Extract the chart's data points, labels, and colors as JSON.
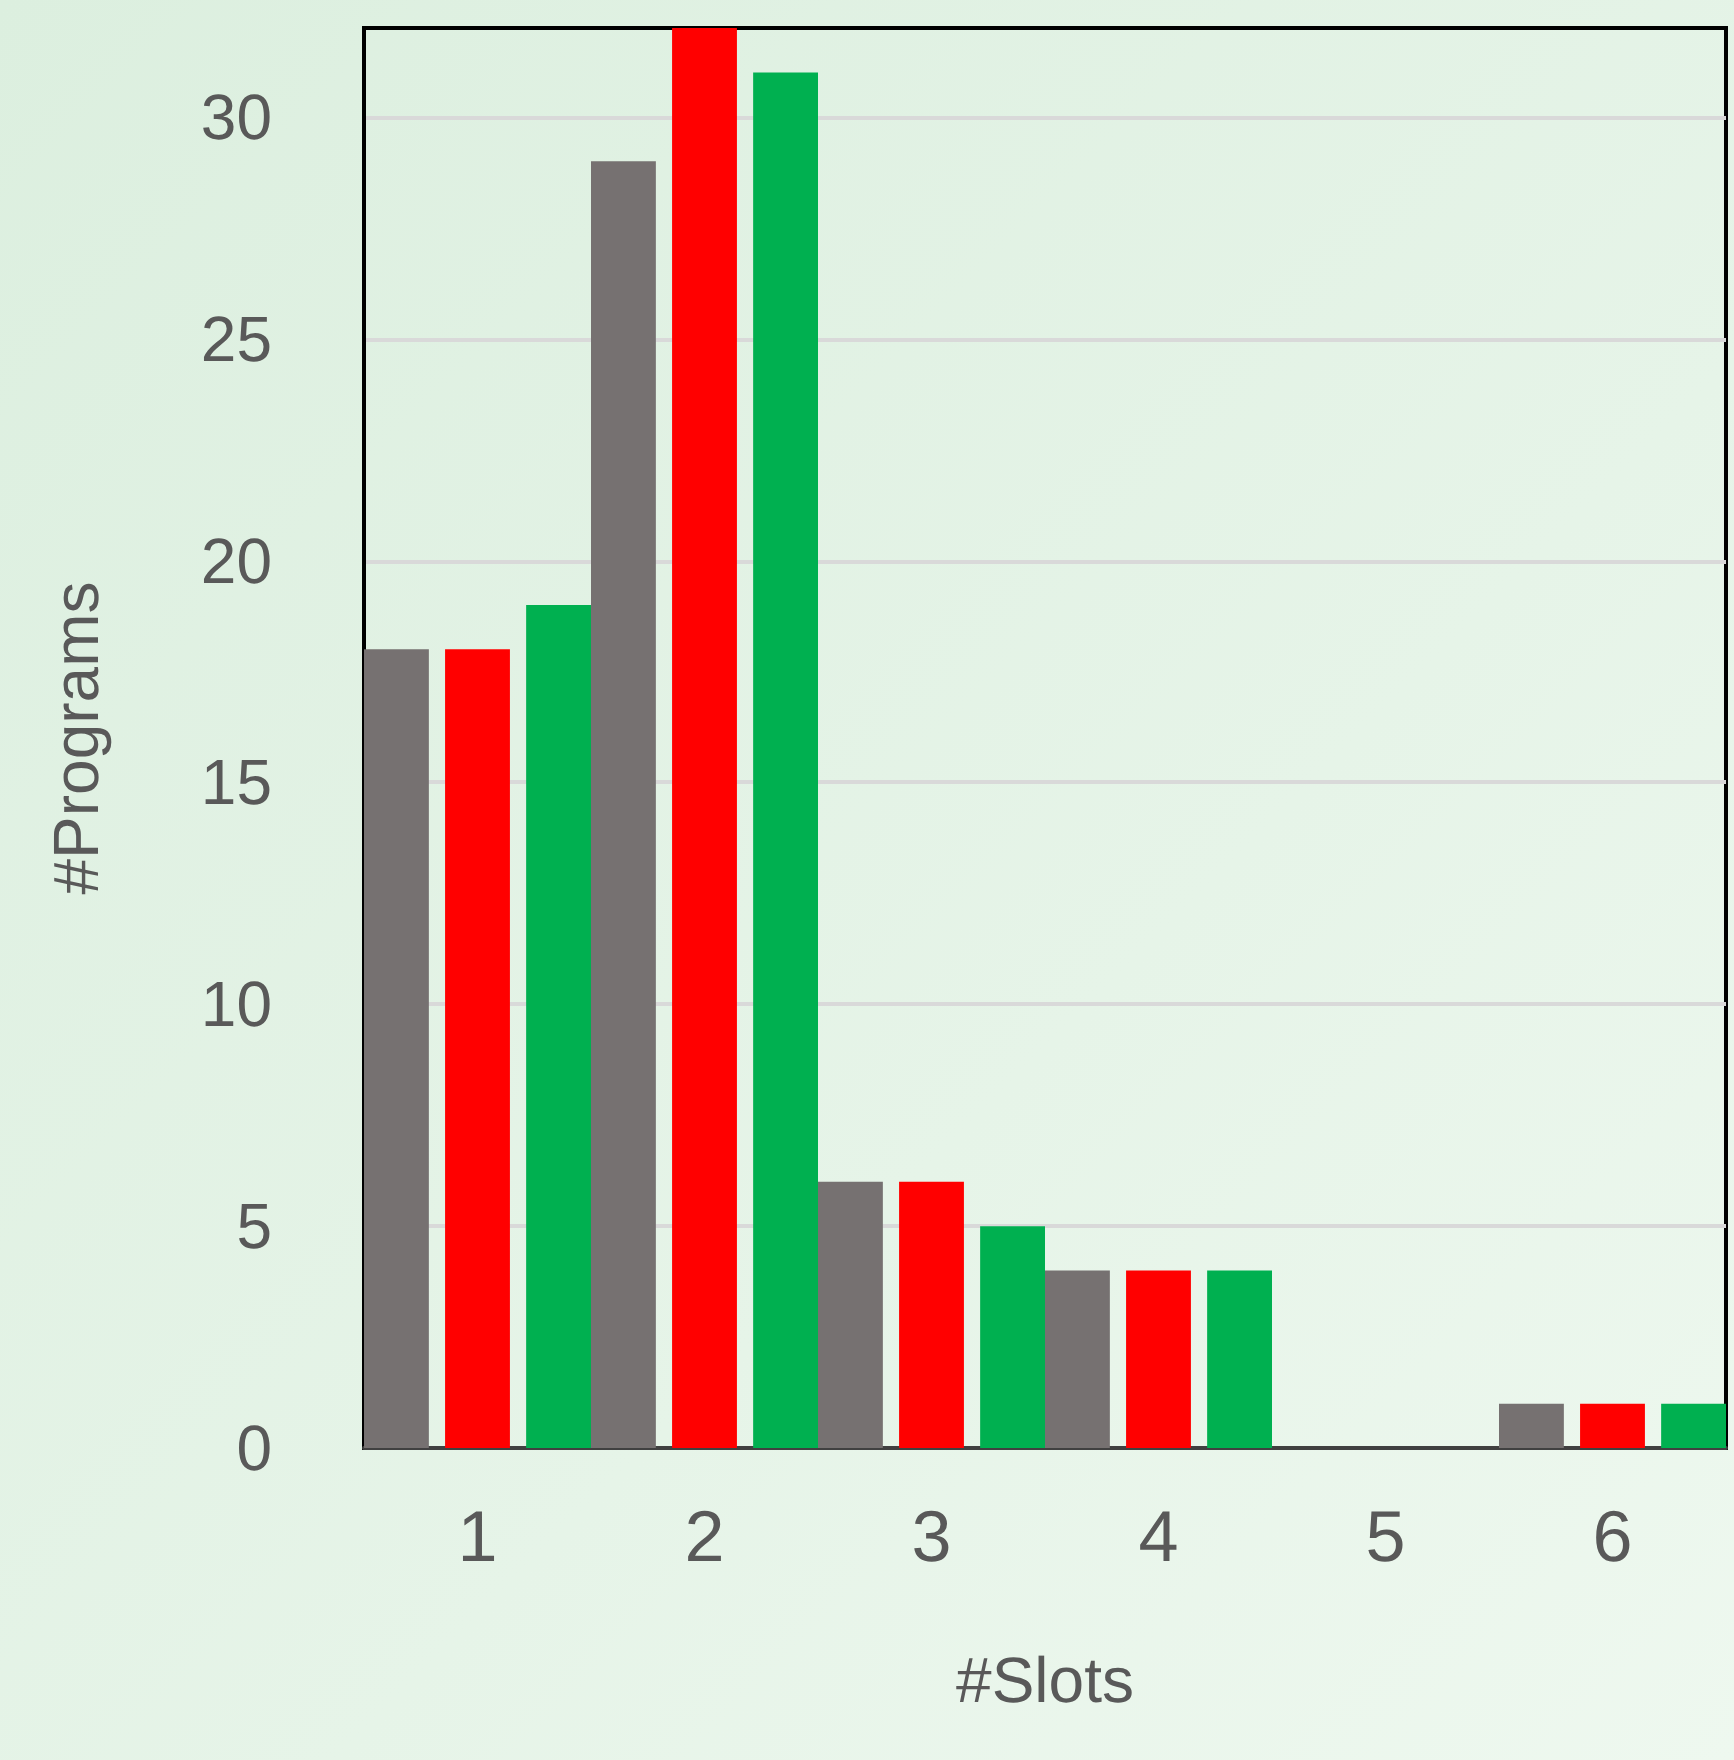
{
  "chart_data": {
    "type": "bar",
    "xlabel": "#Slots",
    "ylabel": "#Programs",
    "categories": [
      "1",
      "2",
      "3",
      "4",
      "5",
      "6"
    ],
    "series": [
      {
        "color": "#767171",
        "values": [
          18,
          29,
          6,
          4,
          0,
          1
        ]
      },
      {
        "color": "#ff0000",
        "values": [
          18,
          32,
          6,
          4,
          0,
          1
        ]
      },
      {
        "color": "#00b050",
        "values": [
          19,
          31,
          5,
          4,
          0,
          1
        ]
      }
    ],
    "ylim": [
      0,
      32
    ],
    "yticks": [
      0,
      5,
      10,
      15,
      20,
      25,
      30
    ],
    "grid": "y"
  }
}
